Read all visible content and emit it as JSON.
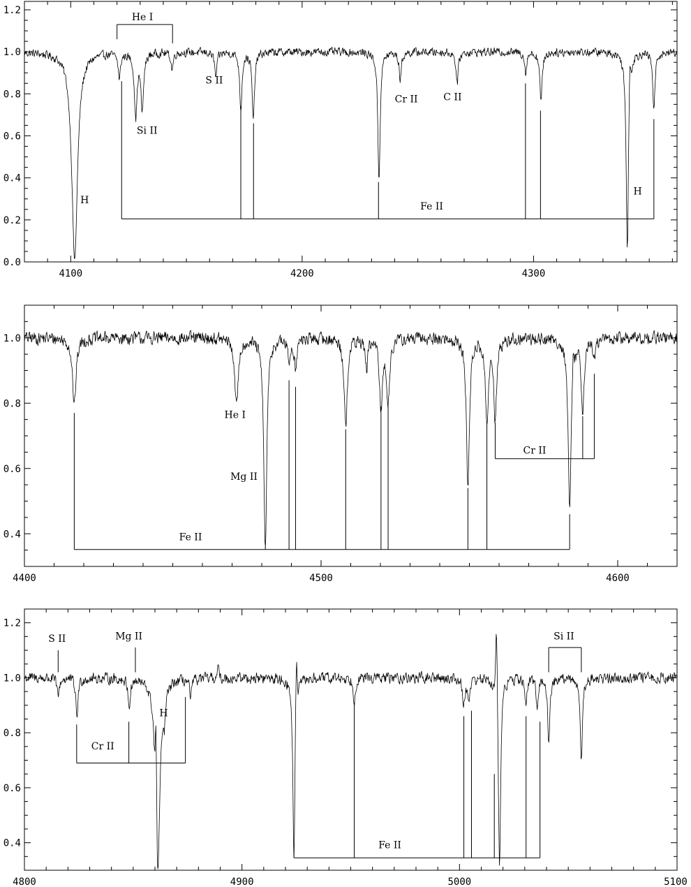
{
  "chart_data": [
    {
      "type": "line",
      "title": "",
      "xlabel": "",
      "ylabel": "",
      "xlim": [
        4080,
        4362
      ],
      "ylim": [
        0.0,
        1.24
      ],
      "xticks": {
        "major": [
          4100,
          4200,
          4300
        ],
        "labels": [
          "4100",
          "4200",
          "4300"
        ],
        "minor_step": 10
      },
      "yticks": {
        "major": [
          0.0,
          0.2,
          0.4,
          0.6,
          0.8,
          1.0,
          1.2
        ],
        "labels": [
          "0.0",
          "0.2",
          "0.4",
          "0.6",
          "0.8",
          "1.0",
          "1.2"
        ],
        "minor_step": 0.05
      },
      "continuum": 1.0,
      "lines": [
        {
          "x": 4101.7,
          "depth": 0.99,
          "width": 1.5
        },
        {
          "x": 4121.0,
          "depth": 0.12,
          "width": 0.6
        },
        {
          "x": 4128.1,
          "depth": 0.3,
          "width": 0.7
        },
        {
          "x": 4130.9,
          "depth": 0.27,
          "width": 0.7
        },
        {
          "x": 4143.8,
          "depth": 0.08,
          "width": 0.6
        },
        {
          "x": 4162.7,
          "depth": 0.12,
          "width": 0.6
        },
        {
          "x": 4173.5,
          "depth": 0.27,
          "width": 0.6
        },
        {
          "x": 4178.9,
          "depth": 0.33,
          "width": 0.6
        },
        {
          "x": 4233.2,
          "depth": 0.61,
          "width": 0.6
        },
        {
          "x": 4242.4,
          "depth": 0.13,
          "width": 0.6
        },
        {
          "x": 4267.0,
          "depth": 0.15,
          "width": 0.6
        },
        {
          "x": 4296.6,
          "depth": 0.1,
          "width": 0.5
        },
        {
          "x": 4303.2,
          "depth": 0.24,
          "width": 0.6
        },
        {
          "x": 4340.5,
          "depth": 0.93,
          "width": 0.6
        },
        {
          "x": 4352.0,
          "depth": 0.27,
          "width": 0.6
        }
      ],
      "emissions": [
        {
          "x": 4341.6,
          "height": 0.13,
          "width": 0.4
        }
      ],
      "annotations": [
        {
          "text": "He I",
          "x": 4131,
          "y": 1.15
        },
        {
          "text": "S II",
          "x": 4162,
          "y": 0.85
        },
        {
          "text": "Si II",
          "x": 4133,
          "y": 0.61
        },
        {
          "text": "Cr II",
          "x": 4245,
          "y": 0.76
        },
        {
          "text": "C II",
          "x": 4265,
          "y": 0.77
        },
        {
          "text": "H",
          "x": 4106,
          "y": 0.28
        },
        {
          "text": "Fe II",
          "x": 4256,
          "y": 0.25
        },
        {
          "text": "H",
          "x": 4345,
          "y": 0.32
        }
      ],
      "brackets": [
        {
          "level": 1.13,
          "direction": "down",
          "ticks": [
            [
              4120,
              1.06
            ],
            [
              4144,
              1.04
            ]
          ]
        },
        {
          "level": 0.205,
          "direction": "up",
          "ticks": [
            [
              4122,
              0.86
            ],
            [
              4173.5,
              0.74
            ],
            [
              4179,
              0.66
            ],
            [
              4233,
              0.38
            ],
            [
              4296.5,
              0.85
            ],
            [
              4303,
              0.72
            ],
            [
              4352,
              0.68
            ]
          ]
        }
      ]
    },
    {
      "type": "line",
      "title": "",
      "xlabel": "",
      "ylabel": "",
      "xlim": [
        4400,
        4620
      ],
      "ylim": [
        0.3,
        1.1
      ],
      "xticks": {
        "major": [
          4400,
          4500,
          4600
        ],
        "labels": [
          "4400",
          "4500",
          "4600"
        ],
        "minor_step": 10
      },
      "yticks": {
        "major": [
          0.4,
          0.6,
          0.8,
          1.0
        ],
        "labels": [
          "0.4",
          "0.6",
          "0.8",
          "1.0"
        ],
        "minor_step": 0.05
      },
      "continuum": 1.0,
      "lines": [
        {
          "x": 4416.8,
          "depth": 0.21,
          "width": 0.7
        },
        {
          "x": 4471.5,
          "depth": 0.21,
          "width": 0.7
        },
        {
          "x": 4481.2,
          "depth": 0.65,
          "width": 0.6
        },
        {
          "x": 4489.2,
          "depth": 0.07,
          "width": 0.5
        },
        {
          "x": 4491.4,
          "depth": 0.09,
          "width": 0.5
        },
        {
          "x": 4508.3,
          "depth": 0.28,
          "width": 0.6
        },
        {
          "x": 4515.3,
          "depth": 0.09,
          "width": 0.5
        },
        {
          "x": 4520.2,
          "depth": 0.22,
          "width": 0.6
        },
        {
          "x": 4522.6,
          "depth": 0.19,
          "width": 0.6
        },
        {
          "x": 4549.5,
          "depth": 0.46,
          "width": 0.6
        },
        {
          "x": 4555.9,
          "depth": 0.26,
          "width": 0.6
        },
        {
          "x": 4558.7,
          "depth": 0.24,
          "width": 0.6
        },
        {
          "x": 4583.8,
          "depth": 0.54,
          "width": 0.6
        },
        {
          "x": 4588.2,
          "depth": 0.21,
          "width": 0.6
        },
        {
          "x": 4592.1,
          "depth": 0.06,
          "width": 0.5
        }
      ],
      "emissions": [
        {
          "x": 4585.0,
          "height": 0.06,
          "width": 0.4
        }
      ],
      "annotations": [
        {
          "text": "He I",
          "x": 4471,
          "y": 0.755
        },
        {
          "text": "Mg II",
          "x": 4474,
          "y": 0.565
        },
        {
          "text": "Cr II",
          "x": 4572,
          "y": 0.645
        },
        {
          "text": "Fe II",
          "x": 4456,
          "y": 0.38
        }
      ],
      "brackets": [
        {
          "level": 0.352,
          "direction": "up",
          "ticks": [
            [
              4416.8,
              0.77
            ],
            [
              4481.2,
              0.36
            ],
            [
              4489.2,
              0.87
            ],
            [
              4491.4,
              0.85
            ],
            [
              4508.3,
              0.72
            ],
            [
              4520.2,
              0.79
            ],
            [
              4522.6,
              0.79
            ],
            [
              4549.5,
              0.54
            ],
            [
              4555.9,
              0.74
            ],
            [
              4583.8,
              0.46
            ]
          ]
        },
        {
          "level": 0.63,
          "direction": "up",
          "ticks": [
            [
              4558.7,
              0.74
            ],
            [
              4588.2,
              0.76
            ],
            [
              4592.1,
              0.89
            ]
          ]
        }
      ]
    },
    {
      "type": "line",
      "title": "",
      "xlabel": "",
      "ylabel": "",
      "xlim": [
        4800,
        5100
      ],
      "ylim": [
        0.3,
        1.25
      ],
      "xticks": {
        "major": [
          4800,
          4900,
          5000,
          5100
        ],
        "labels": [
          "4800",
          "4900",
          "5000",
          "5100"
        ],
        "minor_step": 10
      },
      "yticks": {
        "major": [
          0.4,
          0.6,
          0.8,
          1.0,
          1.2
        ],
        "labels": [
          "0.4",
          "0.6",
          "0.8",
          "1.0",
          "1.2"
        ],
        "minor_step": 0.05
      },
      "continuum": 1.0,
      "lines": [
        {
          "x": 4815.5,
          "depth": 0.07,
          "width": 0.6
        },
        {
          "x": 4824.1,
          "depth": 0.14,
          "width": 0.6
        },
        {
          "x": 4848.2,
          "depth": 0.1,
          "width": 0.6
        },
        {
          "x": 4861.3,
          "depth": 0.7,
          "width": 1.2
        },
        {
          "x": 4864.3,
          "depth": 0.1,
          "width": 0.6
        },
        {
          "x": 4876.4,
          "depth": 0.07,
          "width": 0.6
        },
        {
          "x": 4923.9,
          "depth": 0.65,
          "width": 0.6
        },
        {
          "x": 4951.6,
          "depth": 0.08,
          "width": 0.6
        },
        {
          "x": 5001.9,
          "depth": 0.1,
          "width": 0.6
        },
        {
          "x": 5004.2,
          "depth": 0.08,
          "width": 0.6
        },
        {
          "x": 5018.4,
          "depth": 0.7,
          "width": 0.6
        },
        {
          "x": 5030.6,
          "depth": 0.09,
          "width": 0.6
        },
        {
          "x": 5035.7,
          "depth": 0.09,
          "width": 0.6
        },
        {
          "x": 5041.0,
          "depth": 0.23,
          "width": 0.6
        },
        {
          "x": 5056.0,
          "depth": 0.3,
          "width": 0.6
        }
      ],
      "emissions": [
        {
          "x": 4860.5,
          "height": 0.28,
          "width": 0.4
        },
        {
          "x": 4925.0,
          "height": 0.18,
          "width": 0.5
        },
        {
          "x": 5017.0,
          "height": 0.27,
          "width": 0.5
        },
        {
          "x": 4889.0,
          "height": 0.05,
          "width": 0.4
        }
      ],
      "annotations": [
        {
          "text": "S II",
          "x": 4815,
          "y": 1.13
        },
        {
          "text": "Mg II",
          "x": 4848,
          "y": 1.14
        },
        {
          "text": "Si II",
          "x": 5048,
          "y": 1.14
        },
        {
          "text": "H",
          "x": 4864,
          "y": 0.86
        },
        {
          "text": "Cr II",
          "x": 4836,
          "y": 0.74
        },
        {
          "text": "Fe II",
          "x": 4968,
          "y": 0.38
        }
      ],
      "brackets": [
        {
          "level": 0.69,
          "direction": "up",
          "ticks": [
            [
              4824,
              0.83
            ],
            [
              4848,
              0.84
            ],
            [
              4874,
              0.93
            ]
          ]
        },
        {
          "level": 0.345,
          "direction": "up",
          "ticks": [
            [
              4923.9,
              0.38
            ],
            [
              4951.6,
              0.91
            ],
            [
              5002,
              0.86
            ],
            [
              5005.5,
              0.88
            ],
            [
              5016,
              0.65
            ],
            [
              5030.6,
              0.86
            ],
            [
              5037,
              0.84
            ]
          ]
        },
        {
          "level": 1.11,
          "direction": "down",
          "ticks": [
            [
              5041,
              1.02
            ],
            [
              5056,
              1.02
            ]
          ]
        }
      ],
      "markers": [
        {
          "x1": 4815.5,
          "y1": 1.1,
          "x2": 4815.5,
          "y2": 1.02
        },
        {
          "x1": 4851.0,
          "y1": 1.11,
          "x2": 4851.0,
          "y2": 1.02
        }
      ]
    }
  ]
}
